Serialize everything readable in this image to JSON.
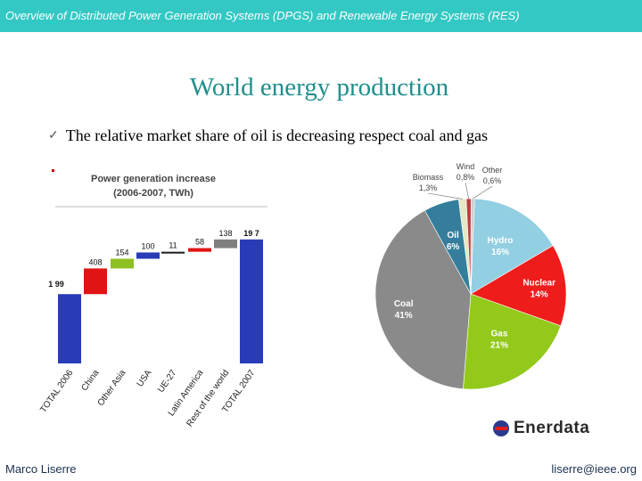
{
  "header": {
    "title": "Overview of Distributed Power Generation Systems (DPGS) and Renewable Energy Systems (RES)"
  },
  "slide": {
    "title": "World energy production",
    "bullet_mark": "✓",
    "bullet": "The relative market share of oil is decreasing respect coal and gas"
  },
  "logo": {
    "text": "Enerdata"
  },
  "footer": {
    "author": "Marco Liserre",
    "email": "liserre@ieee.org"
  },
  "colors": {
    "header_bg": "#33c8c3",
    "title": "#1f8f8c",
    "bar_blue": "#2a3bb8",
    "bar_red": "#e01414",
    "bar_green": "#8dc021",
    "bar_gray": "#7f7f7f",
    "bar_dark": "#1a1a1a"
  },
  "chart_data": [
    {
      "type": "bar",
      "subtype": "waterfall",
      "title": "Power generation increase",
      "subtitle": "(2006-2007, TWh)",
      "categories": [
        "TOTAL 2006",
        "China",
        "Other Asia",
        "USA",
        "UE-27",
        "Latin America",
        "Rest of the world",
        "TOTAL 2007"
      ],
      "values": [
        1.99,
        408,
        154,
        100,
        11,
        58,
        138,
        19.7
      ],
      "value_labels": [
        "1 99",
        "408",
        "154",
        "100",
        "11",
        "58",
        "138",
        "19 7"
      ],
      "colors": [
        "#2a3bb8",
        "#e01414",
        "#8dc021",
        "#2a3bb8",
        "#1a1a1a",
        "#e01414",
        "#7f7f7f",
        "#2a3bb8"
      ]
    },
    {
      "type": "pie",
      "slices": [
        {
          "name": "Hydro",
          "value": 16,
          "label": "16%",
          "color": "#92cfe2"
        },
        {
          "name": "Nuclear",
          "value": 14,
          "label": "14%",
          "color": "#ef1c1c"
        },
        {
          "name": "Gas",
          "value": 21,
          "label": "21%",
          "color": "#93c91b"
        },
        {
          "name": "Coal",
          "value": 41,
          "label": "41%",
          "color": "#8a8a8a"
        },
        {
          "name": "Oil",
          "value": 6,
          "label": "6%",
          "color": "#347e9b"
        },
        {
          "name": "Biomass",
          "value": 1.3,
          "label": "1,3%",
          "color": "#e6e7c4"
        },
        {
          "name": "Wind",
          "value": 0.8,
          "label": "0,8%",
          "color": "#b83e3e"
        },
        {
          "name": "Other",
          "value": 0.6,
          "label": "0,6%",
          "color": "#cfcfcf"
        }
      ]
    }
  ]
}
